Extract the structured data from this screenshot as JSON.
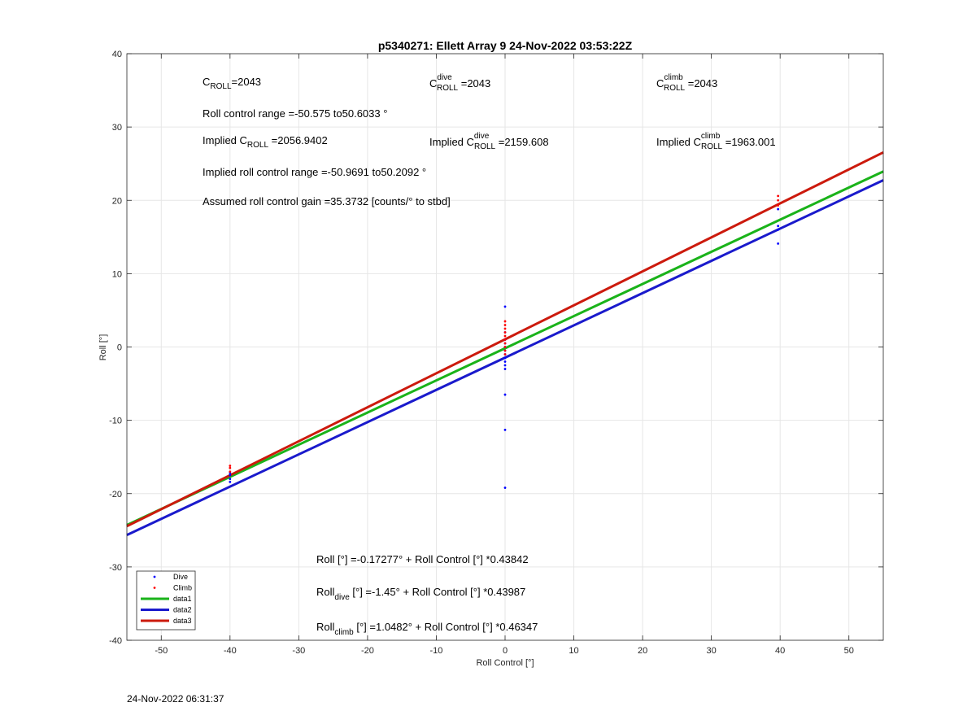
{
  "footer_timestamp": "24-Nov-2022 06:31:37",
  "chart_data": {
    "type": "scatter",
    "title": "p5340271: Ellett Array 9 24-Nov-2022 03:53:22Z",
    "xlabel": "Roll Control [°]",
    "ylabel": "Roll [°]",
    "xlim": [
      -55,
      55
    ],
    "ylim": [
      -40,
      40
    ],
    "xticks": [
      -50,
      -40,
      -30,
      -20,
      -10,
      0,
      10,
      20,
      30,
      40,
      50
    ],
    "yticks": [
      -40,
      -30,
      -20,
      -10,
      0,
      10,
      20,
      30,
      40
    ],
    "grid": true,
    "legend_placement": "bottom-left",
    "legend": [
      {
        "label": "Dive",
        "kind": "marker",
        "color": "#0000ff"
      },
      {
        "label": "Climb",
        "kind": "marker",
        "color": "#ff0000"
      },
      {
        "label": "data1",
        "kind": "line",
        "color": "#1ab31a"
      },
      {
        "label": "data2",
        "kind": "line",
        "color": "#1a1acc"
      },
      {
        "label": "data3",
        "kind": "line",
        "color": "#cc1a0d"
      }
    ],
    "series": [
      {
        "name": "Dive",
        "kind": "points",
        "color": "#0000ff",
        "points": [
          [
            -40,
            -17.5
          ],
          [
            -40,
            -18
          ],
          [
            -40,
            -18.4
          ],
          [
            -40,
            -17.2
          ],
          [
            0,
            5.5
          ],
          [
            0,
            2
          ],
          [
            0,
            1
          ],
          [
            0,
            0.5
          ],
          [
            0,
            0
          ],
          [
            0,
            -0.5
          ],
          [
            0,
            -1
          ],
          [
            0,
            -1.5
          ],
          [
            0,
            -2
          ],
          [
            0,
            -2.5
          ],
          [
            0,
            -3
          ],
          [
            0,
            -6.5
          ],
          [
            0,
            -11.3
          ],
          [
            0,
            -19.2
          ],
          [
            39.7,
            18.8
          ],
          [
            39.7,
            16.5
          ],
          [
            39.7,
            16
          ],
          [
            39.7,
            14.1
          ]
        ]
      },
      {
        "name": "Climb",
        "kind": "points",
        "color": "#ff0000",
        "points": [
          [
            -40,
            -16.2
          ],
          [
            -40,
            -16.5
          ],
          [
            -40,
            -17
          ],
          [
            0,
            3.5
          ],
          [
            0,
            3
          ],
          [
            0,
            2.5
          ],
          [
            0,
            2
          ],
          [
            0,
            1.5
          ],
          [
            0,
            1
          ],
          [
            0,
            0.5
          ],
          [
            0,
            0
          ],
          [
            0,
            -0.5
          ],
          [
            0,
            -1
          ],
          [
            39.7,
            20.6
          ],
          [
            39.7,
            20
          ],
          [
            39.7,
            19.3
          ]
        ]
      },
      {
        "name": "data1",
        "kind": "line",
        "color": "#1ab31a",
        "intercept": -0.17277,
        "slope": 0.43842
      },
      {
        "name": "data2",
        "kind": "line",
        "color": "#1a1acc",
        "intercept": -1.45,
        "slope": 0.43987
      },
      {
        "name": "data3",
        "kind": "line",
        "color": "#cc1a0d",
        "intercept": 1.0482,
        "slope": 0.46347
      }
    ],
    "annotations": {
      "c_roll": {
        "base": "C",
        "sub": "ROLL",
        "value": "=2043"
      },
      "c_roll_dive": {
        "base": "C",
        "sup": "dive",
        "sub": "ROLL",
        "value": " =2043"
      },
      "c_roll_climb": {
        "base": "C",
        "sup": "climb",
        "sub": "ROLL",
        "value": " =2043"
      },
      "roll_control_range": "Roll control range =-50.575 to50.6033 °",
      "implied_c_roll": {
        "prefix": "Implied C",
        "sub": "ROLL",
        "value": " =2056.9402"
      },
      "implied_c_roll_dive": {
        "prefix": "Implied C",
        "sup": "dive",
        "sub": "ROLL",
        "value": " =2159.608"
      },
      "implied_c_roll_climb": {
        "prefix": "Implied C",
        "sup": "climb",
        "sub": "ROLL",
        "value": " =1963.001"
      },
      "implied_range": "Implied roll control range =-50.9691 to50.2092 °",
      "assumed_gain": "Assumed roll control gain =35.3732 [counts/° to stbd]",
      "fit_all": "Roll [°] =-0.17277° + Roll Control [°] *0.43842",
      "fit_dive": {
        "prefix": "Roll",
        "sub": "dive",
        "rest": " [°] =-1.45° + Roll Control [°] *0.43987"
      },
      "fit_climb": {
        "prefix": "Roll",
        "sub": "climb",
        "rest": " [°] =1.0482° + Roll Control [°] *0.46347"
      }
    }
  }
}
